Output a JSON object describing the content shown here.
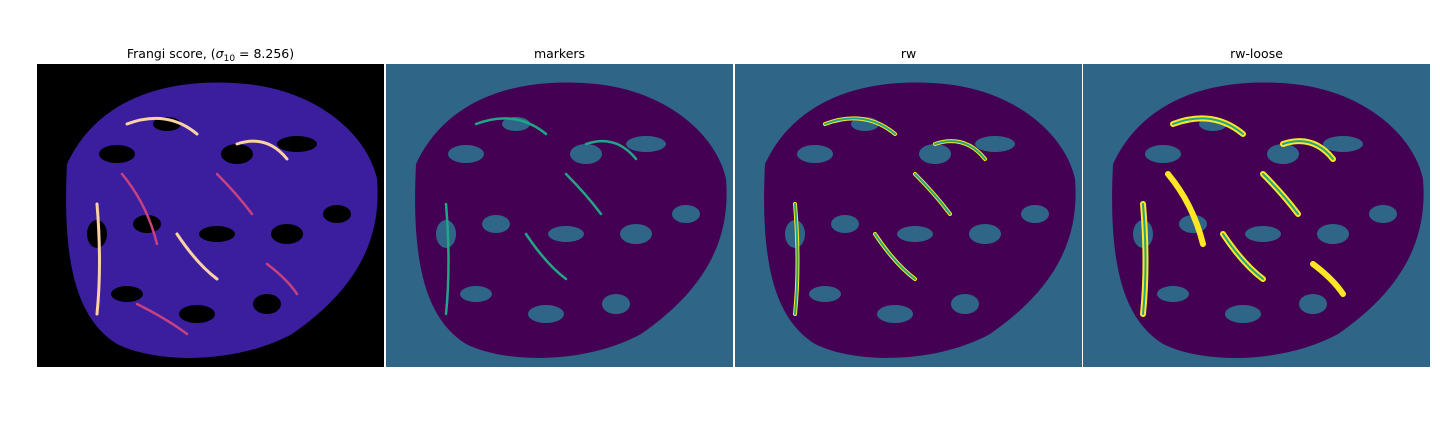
{
  "panels": [
    {
      "title_prefix": "Frangi score, (",
      "sigma": "σ",
      "sigma_sub": "10",
      "title_suffix": " = 8.256)",
      "colormap": "magma"
    },
    {
      "title": "markers",
      "colormap": "viridis"
    },
    {
      "title": "rw",
      "colormap": "viridis"
    },
    {
      "title": "rw-loose",
      "colormap": "viridis"
    }
  ],
  "colors": {
    "frangi_background": "#000000",
    "frangi_low": "#3b1e9e",
    "frangi_high": "#fcd2a4",
    "label_background": "#2f6688",
    "label_tissue": "#440154",
    "label_marker": "#21a685",
    "label_vessel": "#fde725"
  }
}
